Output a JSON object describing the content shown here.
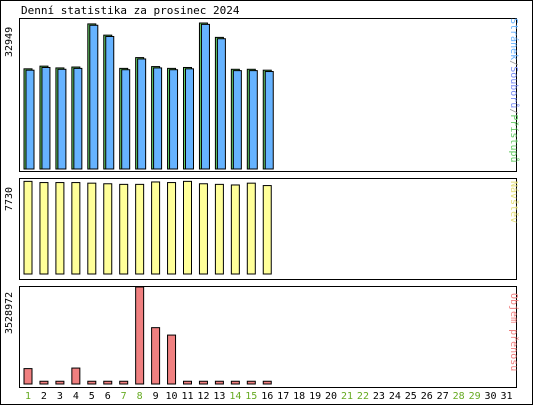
{
  "title": "Denní statistika za prosinec 2024",
  "axis_labels": {
    "panel1_max": "32949",
    "panel2_max": "7730",
    "panel3_max": "3528972"
  },
  "legend": {
    "panel1": [
      {
        "text": "Stránek",
        "color": "#66b3ff"
      },
      {
        "text": "/",
        "color": "#999999"
      },
      {
        "text": "Souborů",
        "color": "#7b8ef5"
      },
      {
        "text": "/",
        "color": "#999999"
      },
      {
        "text": "Přístupů",
        "color": "#66cc66"
      }
    ],
    "panel2": [
      {
        "text": "Návštěv",
        "color": "#e6e07a"
      }
    ],
    "panel3": [
      {
        "text": "Objem přenosu",
        "color": "#f08080"
      }
    ]
  },
  "colors": {
    "pages": "#66b3ff",
    "files": "#7b8ef5",
    "hits": "#66cc66",
    "visits": "#ffff99",
    "kbytes": "#f08080",
    "weekday": "#000000",
    "weekend": "#66aa22"
  },
  "chart_data": {
    "type": "bar",
    "categories": [
      "1",
      "2",
      "3",
      "4",
      "5",
      "6",
      "7",
      "8",
      "9",
      "10",
      "11",
      "12",
      "13",
      "14",
      "15",
      "16",
      "17",
      "18",
      "19",
      "20",
      "21",
      "22",
      "23",
      "24",
      "25",
      "26",
      "27",
      "28",
      "29",
      "30",
      "31"
    ],
    "weekend_days": [
      "1",
      "7",
      "8",
      "14",
      "15",
      "21",
      "22",
      "28",
      "29"
    ],
    "panels": [
      {
        "id": "hits",
        "ylim": [
          0,
          32949
        ],
        "series": [
          {
            "name": "Přístupů",
            "values": [
              22300,
              22900,
              22500,
              22700,
              32300,
              29800,
              22400,
              24800,
              22800,
              22400,
              22600,
              32500,
              29300,
              22200,
              22200,
              22000,
              0,
              0,
              0,
              0,
              0,
              0,
              0,
              0,
              0,
              0,
              0,
              0,
              0,
              0,
              0
            ]
          },
          {
            "name": "Stránek",
            "values": [
              22000,
              22600,
              22200,
              22400,
              32000,
              29500,
              22100,
              24500,
              22500,
              22100,
              22300,
              32200,
              29000,
              21900,
              21900,
              21700,
              0,
              0,
              0,
              0,
              0,
              0,
              0,
              0,
              0,
              0,
              0,
              0,
              0,
              0,
              0
            ]
          }
        ]
      },
      {
        "id": "visits",
        "ylim": [
          0,
          7730
        ],
        "series": [
          {
            "name": "Návštěv",
            "values": [
              7700,
              7600,
              7600,
              7600,
              7550,
              7500,
              7450,
              7450,
              7650,
              7600,
              7700,
              7500,
              7450,
              7400,
              7550,
              7350,
              0,
              0,
              0,
              0,
              0,
              0,
              0,
              0,
              0,
              0,
              0,
              0,
              0,
              0,
              0
            ]
          }
        ]
      },
      {
        "id": "kbytes",
        "ylim": [
          0,
          3528972
        ],
        "series": [
          {
            "name": "Objem přenosu",
            "values": [
              560000,
              100000,
              100000,
              580000,
              100000,
              100000,
              100000,
              3528972,
              2050000,
              1780000,
              100000,
              100000,
              100000,
              100000,
              100000,
              100000,
              0,
              0,
              0,
              0,
              0,
              0,
              0,
              0,
              0,
              0,
              0,
              0,
              0,
              0,
              0
            ]
          }
        ]
      }
    ]
  }
}
